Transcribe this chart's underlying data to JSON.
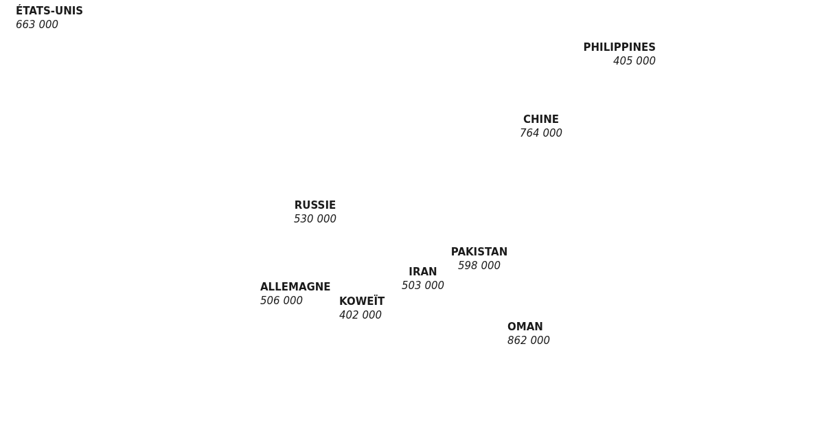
{
  "chart_data": {
    "type": "other",
    "categories": [
      "ÉTATS-UNIS",
      "PHILIPPINES",
      "CHINE",
      "RUSSIE",
      "PAKISTAN",
      "IRAN",
      "ALLEMAGNE",
      "KOWEÏT",
      "OMAN"
    ],
    "values": [
      663000,
      405000,
      764000,
      530000,
      598000,
      503000,
      506000,
      402000,
      862000
    ],
    "data_labels": true
  }
}
